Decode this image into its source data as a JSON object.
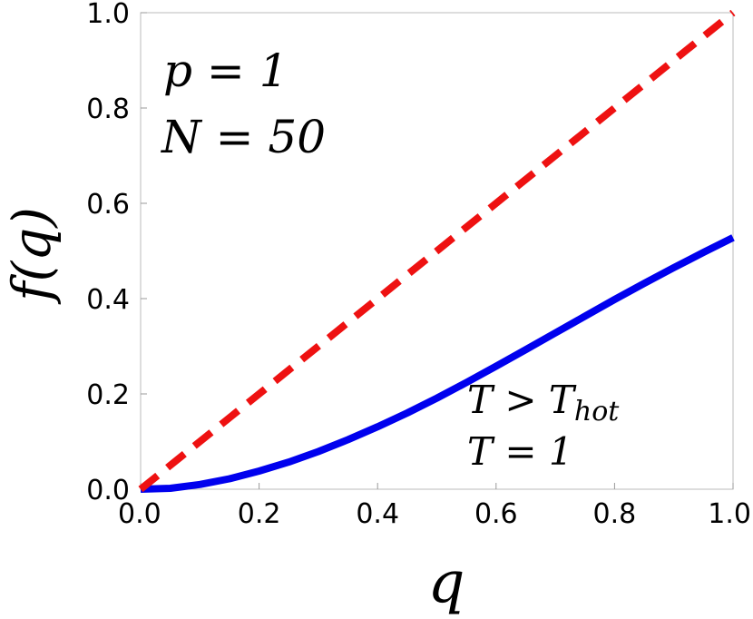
{
  "chart_data": {
    "type": "line",
    "xlabel": "q",
    "ylabel": "f(q)",
    "xlim": [
      0,
      1
    ],
    "ylim": [
      0,
      1
    ],
    "x_ticks": [
      "0.0",
      "0.2",
      "0.4",
      "0.6",
      "0.8",
      "1.0"
    ],
    "y_ticks": [
      "0.0",
      "0.2",
      "0.4",
      "0.6",
      "0.8",
      "1.0"
    ],
    "grid": false,
    "annotations": {
      "params_line1": "p = 1",
      "params_line2": "N = 50",
      "temp_line1_main": "T > T",
      "temp_line1_sub": "hot",
      "temp_line2": "T = 1"
    },
    "series": [
      {
        "style": "dashed",
        "color": "#ee1111",
        "x": [
          0,
          1
        ],
        "y": [
          0,
          1
        ]
      },
      {
        "style": "solid",
        "color": "#0000ee",
        "x": [
          0.0,
          0.05,
          0.1,
          0.15,
          0.2,
          0.25,
          0.3,
          0.35,
          0.4,
          0.45,
          0.5,
          0.55,
          0.6,
          0.65,
          0.7,
          0.75,
          0.8,
          0.85,
          0.9,
          0.95,
          1.0
        ],
        "y": [
          0.0,
          0.002,
          0.01,
          0.022,
          0.038,
          0.057,
          0.079,
          0.104,
          0.131,
          0.16,
          0.191,
          0.224,
          0.258,
          0.293,
          0.328,
          0.363,
          0.398,
          0.432,
          0.465,
          0.497,
          0.528
        ]
      }
    ]
  }
}
